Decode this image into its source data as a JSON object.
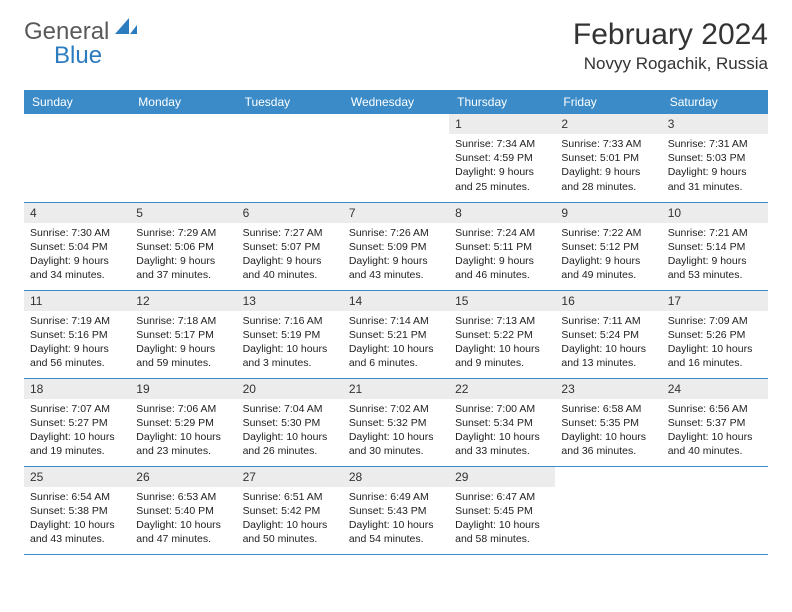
{
  "brand": {
    "word1": "General",
    "word2": "Blue"
  },
  "title": {
    "month": "February 2024",
    "location": "Novyy Rogachik, Russia"
  },
  "colors": {
    "header_bg": "#3b8bc8",
    "header_text": "#ffffff",
    "daynum_bg": "#ececec",
    "row_border": "#3b8bc8",
    "body_text": "#222222",
    "title_text": "#333333",
    "logo_gray": "#5a5a5a",
    "logo_blue": "#2b7bbf",
    "page_bg": "#ffffff"
  },
  "typography": {
    "month_fontsize_pt": 22,
    "location_fontsize_pt": 13,
    "dayhead_fontsize_pt": 9,
    "daynum_fontsize_pt": 9,
    "cell_fontsize_pt": 8
  },
  "layout": {
    "columns": 7,
    "rows": 5,
    "leading_blanks": 4
  },
  "daynames": [
    "Sunday",
    "Monday",
    "Tuesday",
    "Wednesday",
    "Thursday",
    "Friday",
    "Saturday"
  ],
  "sunrise_label": "Sunrise",
  "sunset_label": "Sunset",
  "daylight_label": "Daylight",
  "days": [
    {
      "n": 1,
      "sunrise": "7:34 AM",
      "sunset": "4:59 PM",
      "dl_h": 9,
      "dl_m": 25
    },
    {
      "n": 2,
      "sunrise": "7:33 AM",
      "sunset": "5:01 PM",
      "dl_h": 9,
      "dl_m": 28
    },
    {
      "n": 3,
      "sunrise": "7:31 AM",
      "sunset": "5:03 PM",
      "dl_h": 9,
      "dl_m": 31
    },
    {
      "n": 4,
      "sunrise": "7:30 AM",
      "sunset": "5:04 PM",
      "dl_h": 9,
      "dl_m": 34
    },
    {
      "n": 5,
      "sunrise": "7:29 AM",
      "sunset": "5:06 PM",
      "dl_h": 9,
      "dl_m": 37
    },
    {
      "n": 6,
      "sunrise": "7:27 AM",
      "sunset": "5:07 PM",
      "dl_h": 9,
      "dl_m": 40
    },
    {
      "n": 7,
      "sunrise": "7:26 AM",
      "sunset": "5:09 PM",
      "dl_h": 9,
      "dl_m": 43
    },
    {
      "n": 8,
      "sunrise": "7:24 AM",
      "sunset": "5:11 PM",
      "dl_h": 9,
      "dl_m": 46
    },
    {
      "n": 9,
      "sunrise": "7:22 AM",
      "sunset": "5:12 PM",
      "dl_h": 9,
      "dl_m": 49
    },
    {
      "n": 10,
      "sunrise": "7:21 AM",
      "sunset": "5:14 PM",
      "dl_h": 9,
      "dl_m": 53
    },
    {
      "n": 11,
      "sunrise": "7:19 AM",
      "sunset": "5:16 PM",
      "dl_h": 9,
      "dl_m": 56
    },
    {
      "n": 12,
      "sunrise": "7:18 AM",
      "sunset": "5:17 PM",
      "dl_h": 9,
      "dl_m": 59
    },
    {
      "n": 13,
      "sunrise": "7:16 AM",
      "sunset": "5:19 PM",
      "dl_h": 10,
      "dl_m": 3
    },
    {
      "n": 14,
      "sunrise": "7:14 AM",
      "sunset": "5:21 PM",
      "dl_h": 10,
      "dl_m": 6
    },
    {
      "n": 15,
      "sunrise": "7:13 AM",
      "sunset": "5:22 PM",
      "dl_h": 10,
      "dl_m": 9
    },
    {
      "n": 16,
      "sunrise": "7:11 AM",
      "sunset": "5:24 PM",
      "dl_h": 10,
      "dl_m": 13
    },
    {
      "n": 17,
      "sunrise": "7:09 AM",
      "sunset": "5:26 PM",
      "dl_h": 10,
      "dl_m": 16
    },
    {
      "n": 18,
      "sunrise": "7:07 AM",
      "sunset": "5:27 PM",
      "dl_h": 10,
      "dl_m": 19
    },
    {
      "n": 19,
      "sunrise": "7:06 AM",
      "sunset": "5:29 PM",
      "dl_h": 10,
      "dl_m": 23
    },
    {
      "n": 20,
      "sunrise": "7:04 AM",
      "sunset": "5:30 PM",
      "dl_h": 10,
      "dl_m": 26
    },
    {
      "n": 21,
      "sunrise": "7:02 AM",
      "sunset": "5:32 PM",
      "dl_h": 10,
      "dl_m": 30
    },
    {
      "n": 22,
      "sunrise": "7:00 AM",
      "sunset": "5:34 PM",
      "dl_h": 10,
      "dl_m": 33
    },
    {
      "n": 23,
      "sunrise": "6:58 AM",
      "sunset": "5:35 PM",
      "dl_h": 10,
      "dl_m": 36
    },
    {
      "n": 24,
      "sunrise": "6:56 AM",
      "sunset": "5:37 PM",
      "dl_h": 10,
      "dl_m": 40
    },
    {
      "n": 25,
      "sunrise": "6:54 AM",
      "sunset": "5:38 PM",
      "dl_h": 10,
      "dl_m": 43
    },
    {
      "n": 26,
      "sunrise": "6:53 AM",
      "sunset": "5:40 PM",
      "dl_h": 10,
      "dl_m": 47
    },
    {
      "n": 27,
      "sunrise": "6:51 AM",
      "sunset": "5:42 PM",
      "dl_h": 10,
      "dl_m": 50
    },
    {
      "n": 28,
      "sunrise": "6:49 AM",
      "sunset": "5:43 PM",
      "dl_h": 10,
      "dl_m": 54
    },
    {
      "n": 29,
      "sunrise": "6:47 AM",
      "sunset": "5:45 PM",
      "dl_h": 10,
      "dl_m": 58
    }
  ]
}
